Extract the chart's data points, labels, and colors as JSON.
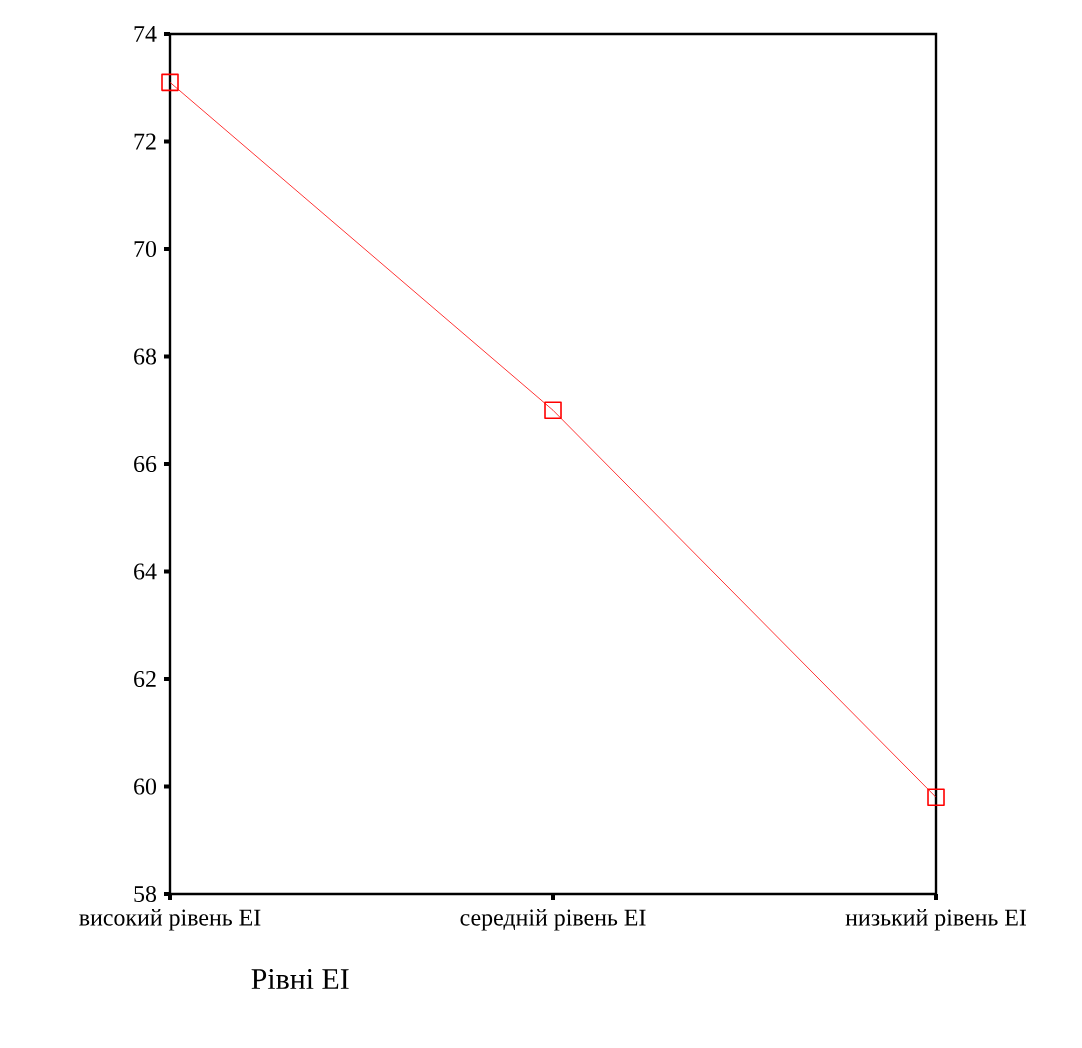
{
  "chart_data": {
    "type": "line",
    "xlabel": "Рівні ЕІ",
    "categories": [
      "високий рівень ЕІ",
      "середній рівень ЕІ",
      "низький рівень ЕІ"
    ],
    "values": [
      73.1,
      67.0,
      59.8
    ],
    "color": "#ff0000",
    "marker": "square",
    "line_style": "solid",
    "ylim": [
      58,
      74
    ],
    "yticks": [
      58,
      60,
      62,
      64,
      66,
      68,
      70,
      72,
      74
    ]
  }
}
